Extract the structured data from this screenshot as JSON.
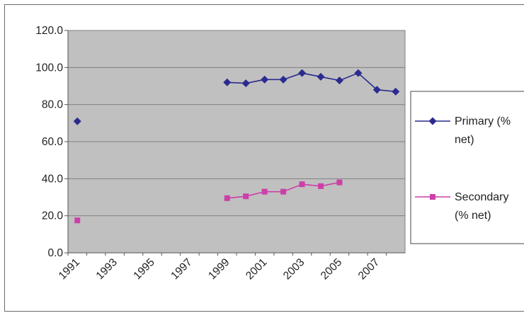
{
  "chart_data": {
    "type": "line",
    "x": [
      1991,
      1992,
      1993,
      1994,
      1995,
      1996,
      1997,
      1998,
      1999,
      2000,
      2001,
      2002,
      2003,
      2004,
      2005,
      2006,
      2007,
      2008
    ],
    "x_tick_labels": [
      "1991",
      "1993",
      "1995",
      "1997",
      "1999",
      "2001",
      "2003",
      "2005",
      "2007"
    ],
    "y_tick_labels": [
      "0.0",
      "20.0",
      "40.0",
      "60.0",
      "80.0",
      "100.0",
      "120.0"
    ],
    "ylim": [
      0,
      120
    ],
    "grid": true,
    "legend_position": "right",
    "series": [
      {
        "name": "Primary (% net)",
        "legend_lines": [
          "Primary (%",
          "net)"
        ],
        "color": "#2b2b8f",
        "marker": "diamond",
        "values": [
          71.0,
          null,
          null,
          null,
          null,
          null,
          null,
          null,
          92.0,
          91.5,
          93.5,
          93.5,
          97.0,
          95.0,
          93.0,
          97.0,
          88.0,
          87.0
        ]
      },
      {
        "name": "Secondary (% net)",
        "legend_lines": [
          "Secondary",
          "(% net)"
        ],
        "color": "#cc3fa8",
        "marker": "square",
        "values": [
          17.5,
          null,
          null,
          null,
          null,
          null,
          null,
          null,
          29.5,
          30.5,
          33.0,
          33.0,
          37.0,
          36.0,
          38.0,
          null,
          null,
          null
        ]
      }
    ],
    "colors": {
      "plot_background": "#c0c0c0",
      "gridline": "#808080"
    }
  }
}
